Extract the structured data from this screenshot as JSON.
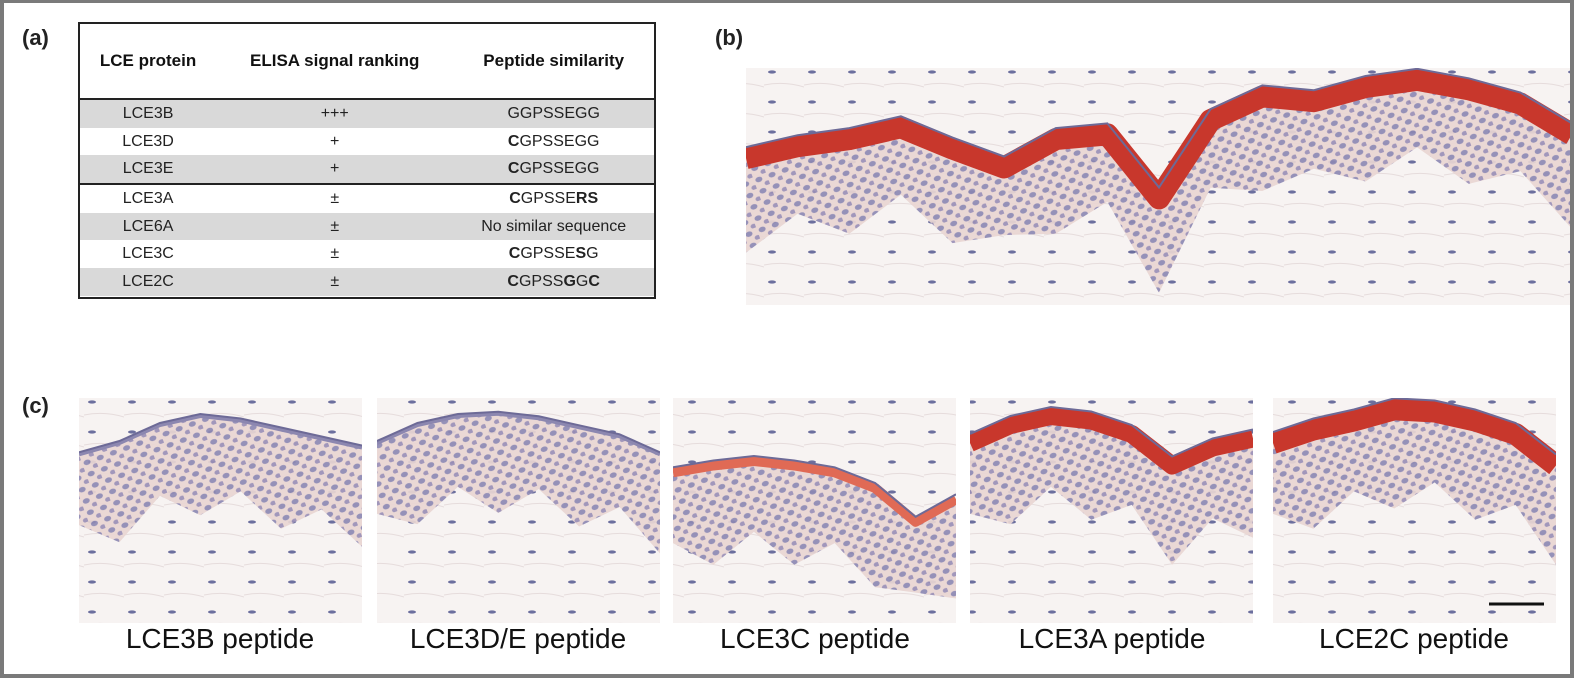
{
  "panels": {
    "a": {
      "label": "(a)",
      "table": {
        "header": [
          "LCE protein",
          "ELISA signal ranking",
          "Peptide similarity"
        ],
        "rows": [
          {
            "protein": "LCE3B",
            "ranking": "+++",
            "similarity": [
              {
                "text": "GGPSSEGG",
                "bold": false
              }
            ]
          },
          {
            "protein": "LCE3D",
            "ranking": "+",
            "similarity": [
              {
                "text": "C",
                "bold": true
              },
              {
                "text": "GPSSEGG",
                "bold": false
              }
            ]
          },
          {
            "protein": "LCE3E",
            "ranking": "+",
            "similarity": [
              {
                "text": "C",
                "bold": true
              },
              {
                "text": "GPSSEGG",
                "bold": false
              }
            ]
          },
          {
            "protein": "LCE3A",
            "ranking": "±",
            "similarity": [
              {
                "text": "C",
                "bold": true
              },
              {
                "text": "GPSSE",
                "bold": false
              },
              {
                "text": "RS",
                "bold": true
              }
            ]
          },
          {
            "protein": "LCE6A",
            "ranking": "±",
            "similarity": [
              {
                "text": "No similar sequence",
                "bold": false
              }
            ]
          },
          {
            "protein": "LCE3C",
            "ranking": "±",
            "similarity": [
              {
                "text": "C",
                "bold": true
              },
              {
                "text": "GPSSE",
                "bold": false
              },
              {
                "text": "S",
                "bold": true
              },
              {
                "text": "G",
                "bold": false
              }
            ]
          },
          {
            "protein": "LCE2C",
            "ranking": "±",
            "similarity": [
              {
                "text": "C",
                "bold": true
              },
              {
                "text": "GPSS",
                "bold": false
              },
              {
                "text": "G",
                "bold": true
              },
              {
                "text": "G",
                "bold": false
              },
              {
                "text": "C",
                "bold": true
              }
            ]
          }
        ]
      }
    },
    "b": {
      "label": "(b)"
    },
    "c": {
      "label": "(c)",
      "captions": [
        "LCE3B peptide",
        "LCE3D/E peptide",
        "LCE3C peptide",
        "LCE3A peptide",
        "LCE2C peptide"
      ]
    }
  }
}
